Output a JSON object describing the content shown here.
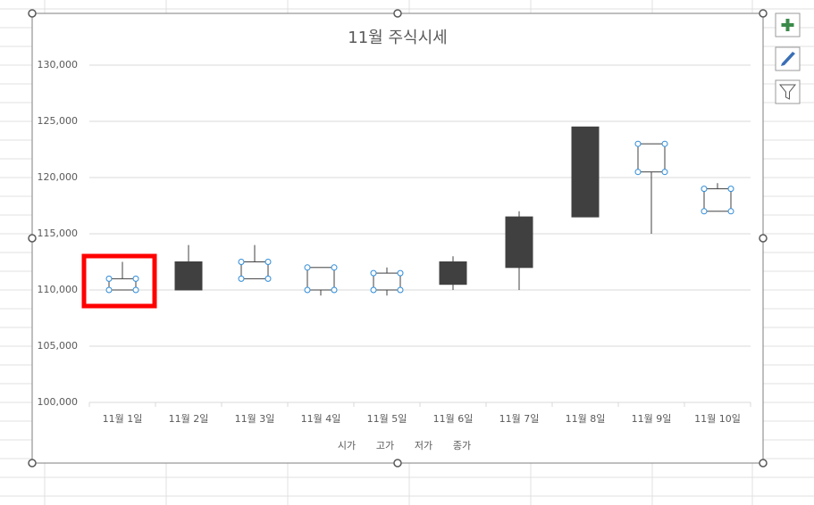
{
  "chart_data": {
    "type": "candlestick",
    "title": "11월 주식시세",
    "categories": [
      "11월 1일",
      "11월 2일",
      "11월 3일",
      "11월 4일",
      "11월 5일",
      "11월 6일",
      "11월 7일",
      "11월 8일",
      "11월 9일",
      "11월 10일"
    ],
    "series": [
      {
        "name": "시가",
        "values": [
          110000,
          112500,
          111000,
          110000,
          110000,
          112500,
          116500,
          124500,
          120500,
          117000
        ]
      },
      {
        "name": "고가",
        "values": [
          112500,
          114000,
          114000,
          112000,
          112000,
          113000,
          117000,
          124500,
          123000,
          119500
        ]
      },
      {
        "name": "저가",
        "values": [
          110000,
          110000,
          111000,
          109500,
          109500,
          110000,
          110000,
          116500,
          115000,
          117000
        ]
      },
      {
        "name": "종가",
        "values": [
          111000,
          110000,
          112500,
          112000,
          111500,
          110500,
          112000,
          116500,
          123000,
          119000
        ]
      }
    ],
    "up_color": "#ffffff",
    "down_color": "#404040",
    "ylim": [
      100000,
      130000
    ],
    "yticks": [
      {
        "value": 100000,
        "label": "100,000"
      },
      {
        "value": 105000,
        "label": "105,000"
      },
      {
        "value": 110000,
        "label": "110,000"
      },
      {
        "value": 115000,
        "label": "115,000"
      },
      {
        "value": 120000,
        "label": "120,000"
      },
      {
        "value": 125000,
        "label": "125,000"
      },
      {
        "value": 130000,
        "label": "130,000"
      }
    ],
    "grid": true,
    "legend": "bottom"
  }
}
